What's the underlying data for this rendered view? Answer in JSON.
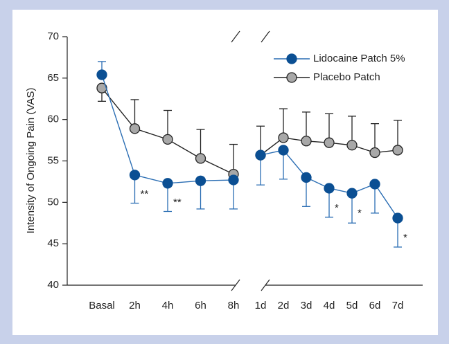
{
  "chart_data": {
    "type": "line",
    "ylabel": "Intensity of Ongoing Pain (VAS)",
    "categories": [
      "Basal",
      "2h",
      "4h",
      "6h",
      "8h",
      "1d",
      "2d",
      "3d",
      "4d",
      "5d",
      "6d",
      "7d"
    ],
    "x_break_after": 4,
    "ylim": [
      40,
      70
    ],
    "yticks": [
      40,
      45,
      50,
      55,
      60,
      65,
      70
    ],
    "legend": "top-right",
    "series": [
      {
        "name": "Lidocaine Patch 5%",
        "color": "#0b4f93",
        "line_color": "#2a6db3",
        "values": [
          65.4,
          53.3,
          52.3,
          52.6,
          52.7,
          55.7,
          56.3,
          53.0,
          51.7,
          51.1,
          52.2,
          48.1
        ],
        "errors": [
          1.6,
          3.4,
          3.4,
          3.4,
          3.5,
          3.6,
          3.5,
          3.5,
          3.5,
          3.6,
          3.5,
          3.5
        ],
        "error_side": [
          "up",
          "down",
          "down",
          "down",
          "down",
          "down",
          "down",
          "down",
          "down",
          "down",
          "down",
          "down"
        ]
      },
      {
        "name": "Placebo Patch",
        "color": "#a8a8a8",
        "line_color": "#222222",
        "values": [
          63.8,
          58.9,
          57.6,
          55.3,
          53.4,
          55.7,
          57.8,
          57.4,
          57.2,
          56.9,
          56.0,
          56.3
        ],
        "errors": [
          1.6,
          3.5,
          3.5,
          3.5,
          3.6,
          3.5,
          3.5,
          3.5,
          3.5,
          3.5,
          3.5,
          3.6
        ],
        "error_side": [
          "down",
          "up",
          "up",
          "up",
          "up",
          "up",
          "up",
          "up",
          "up",
          "up",
          "up",
          "up"
        ]
      }
    ],
    "annotations": [
      {
        "text": "**",
        "category": 1
      },
      {
        "text": "**",
        "category": 2
      },
      {
        "text": "*",
        "category": 8
      },
      {
        "text": "*",
        "category": 9
      },
      {
        "text": "*",
        "category": 11
      }
    ]
  }
}
